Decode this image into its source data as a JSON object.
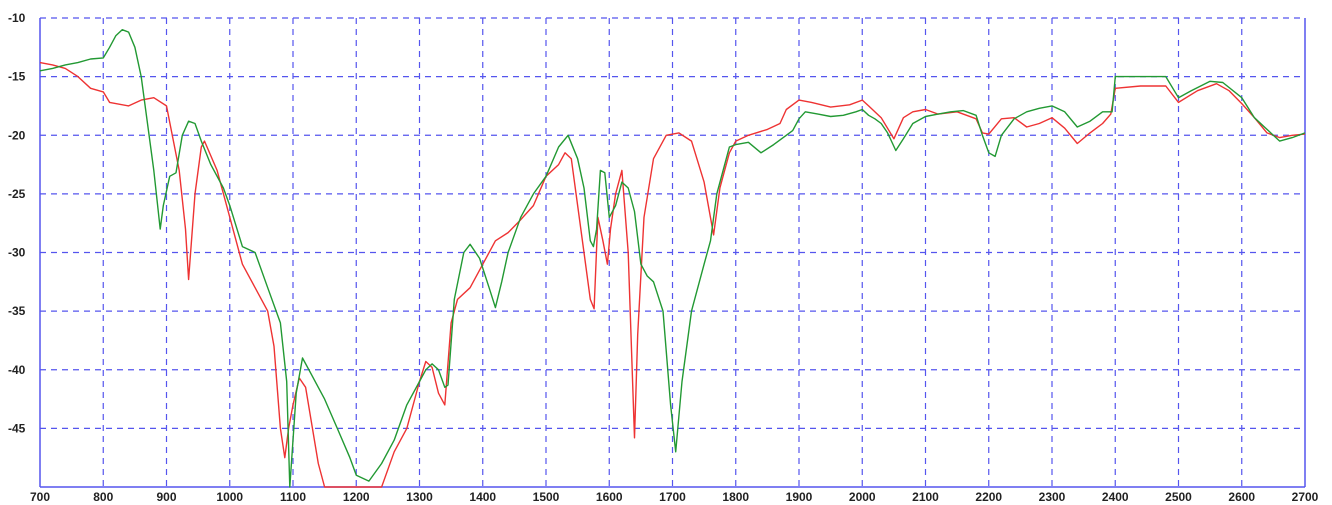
{
  "chart_data": {
    "type": "line",
    "title": "",
    "xlabel": "",
    "ylabel": "",
    "xlim": [
      700,
      2700
    ],
    "ylim": [
      -51,
      -10
    ],
    "grid": true,
    "legend": "none",
    "x_ticks": [
      "700",
      "800",
      "900",
      "1000",
      "1100",
      "1200",
      "1300",
      "1400",
      "1500",
      "1600",
      "1700",
      "1800",
      "1900",
      "2000",
      "2100",
      "2200",
      "2300",
      "2400",
      "2500",
      "2600",
      "2700"
    ],
    "y_ticks": [
      "-10",
      "-15",
      "-20",
      "-25",
      "-30",
      "-35",
      "-40",
      "-45"
    ],
    "colors": {
      "grid": "#5555ee",
      "red_series": "#ee3333",
      "green_series": "#229933"
    },
    "series": [
      {
        "color": "#ee3333",
        "points": [
          [
            700,
            -13.8
          ],
          [
            720,
            -14
          ],
          [
            740,
            -14.3
          ],
          [
            760,
            -15
          ],
          [
            780,
            -16
          ],
          [
            800,
            -16.3
          ],
          [
            810,
            -17.2
          ],
          [
            840,
            -17.5
          ],
          [
            860,
            -17
          ],
          [
            880,
            -16.8
          ],
          [
            900,
            -17.5
          ],
          [
            920,
            -23
          ],
          [
            930,
            -28
          ],
          [
            935,
            -32.3
          ],
          [
            945,
            -25
          ],
          [
            955,
            -21
          ],
          [
            960,
            -20.5
          ],
          [
            980,
            -23
          ],
          [
            1000,
            -27
          ],
          [
            1020,
            -31
          ],
          [
            1040,
            -33
          ],
          [
            1060,
            -35
          ],
          [
            1070,
            -38
          ],
          [
            1080,
            -45
          ],
          [
            1087,
            -47.5
          ],
          [
            1093,
            -45
          ],
          [
            1100,
            -43
          ],
          [
            1110,
            -40.7
          ],
          [
            1120,
            -41.5
          ],
          [
            1140,
            -48
          ],
          [
            1150,
            -50
          ],
          [
            1200,
            -50
          ],
          [
            1240,
            -50
          ],
          [
            1260,
            -47
          ],
          [
            1280,
            -45
          ],
          [
            1300,
            -41
          ],
          [
            1310,
            -39.3
          ],
          [
            1320,
            -39.8
          ],
          [
            1330,
            -42
          ],
          [
            1340,
            -43
          ],
          [
            1350,
            -36
          ],
          [
            1360,
            -34
          ],
          [
            1380,
            -33
          ],
          [
            1400,
            -31
          ],
          [
            1420,
            -29
          ],
          [
            1440,
            -28.3
          ],
          [
            1460,
            -27.2
          ],
          [
            1480,
            -26
          ],
          [
            1500,
            -23.5
          ],
          [
            1520,
            -22.5
          ],
          [
            1530,
            -21.5
          ],
          [
            1540,
            -22
          ],
          [
            1560,
            -30
          ],
          [
            1570,
            -34
          ],
          [
            1576,
            -34.8
          ],
          [
            1582,
            -27
          ],
          [
            1590,
            -29
          ],
          [
            1597,
            -31
          ],
          [
            1602,
            -28
          ],
          [
            1610,
            -25
          ],
          [
            1620,
            -23
          ],
          [
            1630,
            -30
          ],
          [
            1640,
            -45.8
          ],
          [
            1645,
            -37
          ],
          [
            1655,
            -27
          ],
          [
            1670,
            -22
          ],
          [
            1690,
            -20
          ],
          [
            1710,
            -19.8
          ],
          [
            1730,
            -20.5
          ],
          [
            1750,
            -24
          ],
          [
            1765,
            -28.5
          ],
          [
            1775,
            -24.5
          ],
          [
            1790,
            -21.5
          ],
          [
            1800,
            -20.5
          ],
          [
            1820,
            -20
          ],
          [
            1850,
            -19.5
          ],
          [
            1870,
            -19
          ],
          [
            1880,
            -17.8
          ],
          [
            1900,
            -17
          ],
          [
            1920,
            -17.2
          ],
          [
            1950,
            -17.6
          ],
          [
            1980,
            -17.4
          ],
          [
            2000,
            -17
          ],
          [
            2010,
            -17.5
          ],
          [
            2030,
            -18.5
          ],
          [
            2050,
            -20.3
          ],
          [
            2065,
            -18.5
          ],
          [
            2080,
            -18
          ],
          [
            2100,
            -17.8
          ],
          [
            2120,
            -18.2
          ],
          [
            2150,
            -18
          ],
          [
            2180,
            -18.6
          ],
          [
            2190,
            -19.8
          ],
          [
            2200,
            -19.9
          ],
          [
            2220,
            -18.6
          ],
          [
            2240,
            -18.5
          ],
          [
            2260,
            -19.3
          ],
          [
            2280,
            -19
          ],
          [
            2300,
            -18.5
          ],
          [
            2320,
            -19.4
          ],
          [
            2340,
            -20.7
          ],
          [
            2360,
            -19.8
          ],
          [
            2380,
            -19
          ],
          [
            2393,
            -18.2
          ],
          [
            2400,
            -16
          ],
          [
            2440,
            -15.8
          ],
          [
            2480,
            -15.8
          ],
          [
            2500,
            -17.2
          ],
          [
            2530,
            -16.2
          ],
          [
            2560,
            -15.6
          ],
          [
            2580,
            -16.2
          ],
          [
            2600,
            -17.3
          ],
          [
            2620,
            -18.5
          ],
          [
            2640,
            -19.8
          ],
          [
            2660,
            -20.2
          ],
          [
            2680,
            -20
          ],
          [
            2700,
            -19.9
          ]
        ]
      },
      {
        "color": "#229933",
        "points": [
          [
            700,
            -14.5
          ],
          [
            720,
            -14.3
          ],
          [
            740,
            -14
          ],
          [
            760,
            -13.8
          ],
          [
            780,
            -13.5
          ],
          [
            800,
            -13.4
          ],
          [
            810,
            -12.5
          ],
          [
            820,
            -11.5
          ],
          [
            830,
            -11
          ],
          [
            840,
            -11.2
          ],
          [
            850,
            -12.5
          ],
          [
            860,
            -15
          ],
          [
            880,
            -23
          ],
          [
            890,
            -28
          ],
          [
            895,
            -26
          ],
          [
            905,
            -23.5
          ],
          [
            915,
            -23.2
          ],
          [
            925,
            -20
          ],
          [
            935,
            -18.8
          ],
          [
            945,
            -19
          ],
          [
            955,
            -20.5
          ],
          [
            970,
            -22.5
          ],
          [
            990,
            -24.5
          ],
          [
            1000,
            -26
          ],
          [
            1020,
            -29.5
          ],
          [
            1040,
            -30
          ],
          [
            1060,
            -33
          ],
          [
            1080,
            -36
          ],
          [
            1090,
            -41
          ],
          [
            1095,
            -50
          ],
          [
            1105,
            -42
          ],
          [
            1115,
            -39
          ],
          [
            1130,
            -40.5
          ],
          [
            1150,
            -42.5
          ],
          [
            1170,
            -45
          ],
          [
            1190,
            -47.5
          ],
          [
            1200,
            -49
          ],
          [
            1220,
            -49.5
          ],
          [
            1240,
            -48
          ],
          [
            1260,
            -46
          ],
          [
            1280,
            -43
          ],
          [
            1300,
            -41
          ],
          [
            1310,
            -40
          ],
          [
            1320,
            -39.5
          ],
          [
            1330,
            -40
          ],
          [
            1340,
            -41.5
          ],
          [
            1345,
            -41.3
          ],
          [
            1355,
            -34
          ],
          [
            1370,
            -30
          ],
          [
            1380,
            -29.3
          ],
          [
            1395,
            -30.5
          ],
          [
            1410,
            -33
          ],
          [
            1420,
            -34.7
          ],
          [
            1430,
            -32.5
          ],
          [
            1440,
            -30
          ],
          [
            1460,
            -27
          ],
          [
            1480,
            -25
          ],
          [
            1500,
            -23.5
          ],
          [
            1520,
            -21
          ],
          [
            1535,
            -20
          ],
          [
            1550,
            -22
          ],
          [
            1560,
            -24.5
          ],
          [
            1570,
            -29
          ],
          [
            1575,
            -29.5
          ],
          [
            1580,
            -28
          ],
          [
            1586,
            -23
          ],
          [
            1593,
            -23.2
          ],
          [
            1600,
            -27
          ],
          [
            1610,
            -26
          ],
          [
            1620,
            -24
          ],
          [
            1630,
            -24.5
          ],
          [
            1640,
            -26.5
          ],
          [
            1650,
            -31
          ],
          [
            1660,
            -32
          ],
          [
            1670,
            -32.5
          ],
          [
            1685,
            -35
          ],
          [
            1697,
            -43
          ],
          [
            1705,
            -47
          ],
          [
            1715,
            -41
          ],
          [
            1730,
            -35
          ],
          [
            1750,
            -31
          ],
          [
            1760,
            -29
          ],
          [
            1770,
            -25
          ],
          [
            1780,
            -23
          ],
          [
            1790,
            -21
          ],
          [
            1800,
            -20.8
          ],
          [
            1820,
            -20.6
          ],
          [
            1840,
            -21.5
          ],
          [
            1860,
            -20.8
          ],
          [
            1880,
            -20
          ],
          [
            1890,
            -19.6
          ],
          [
            1900,
            -18.6
          ],
          [
            1910,
            -18
          ],
          [
            1930,
            -18.2
          ],
          [
            1950,
            -18.4
          ],
          [
            1970,
            -18.3
          ],
          [
            1990,
            -18
          ],
          [
            2000,
            -17.8
          ],
          [
            2010,
            -18.3
          ],
          [
            2020,
            -18.6
          ],
          [
            2030,
            -19
          ],
          [
            2040,
            -19.8
          ],
          [
            2053,
            -21.3
          ],
          [
            2065,
            -20.3
          ],
          [
            2080,
            -19
          ],
          [
            2100,
            -18.4
          ],
          [
            2120,
            -18.2
          ],
          [
            2140,
            -18
          ],
          [
            2160,
            -17.9
          ],
          [
            2180,
            -18.3
          ],
          [
            2190,
            -20
          ],
          [
            2200,
            -21.5
          ],
          [
            2210,
            -21.8
          ],
          [
            2220,
            -20
          ],
          [
            2240,
            -18.6
          ],
          [
            2260,
            -18
          ],
          [
            2280,
            -17.7
          ],
          [
            2300,
            -17.5
          ],
          [
            2320,
            -18
          ],
          [
            2340,
            -19.3
          ],
          [
            2360,
            -18.8
          ],
          [
            2380,
            -18
          ],
          [
            2395,
            -18
          ],
          [
            2400,
            -15
          ],
          [
            2440,
            -15
          ],
          [
            2480,
            -15
          ],
          [
            2500,
            -16.8
          ],
          [
            2520,
            -16.2
          ],
          [
            2550,
            -15.4
          ],
          [
            2570,
            -15.5
          ],
          [
            2600,
            -16.8
          ],
          [
            2620,
            -18.5
          ],
          [
            2640,
            -19.5
          ],
          [
            2660,
            -20.5
          ],
          [
            2680,
            -20.2
          ],
          [
            2700,
            -19.8
          ]
        ]
      }
    ]
  }
}
